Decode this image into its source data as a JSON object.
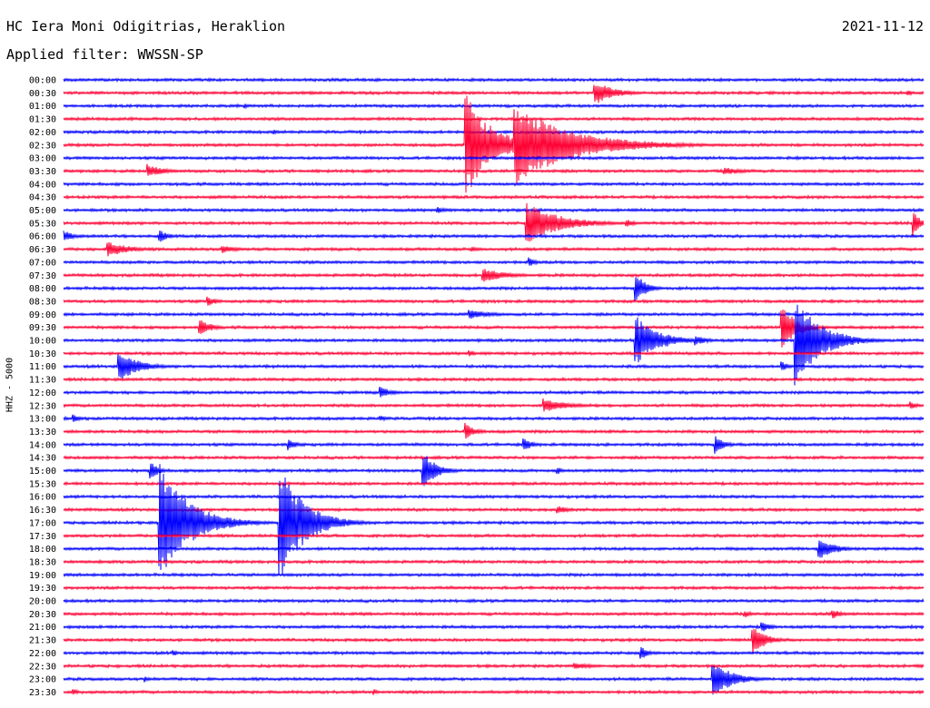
{
  "header": {
    "station": "HC Iera Moni Odigitrias, Heraklion",
    "filter": "Applied filter: WWSSN-SP",
    "date": "2021-11-12"
  },
  "chart_data": {
    "type": "line",
    "title": "HC Iera Moni Odigitrias, Heraklion",
    "subtitle": "Applied filter: WWSSN-SP",
    "ylabel": "HHZ - 5000",
    "date": "2021-11-12",
    "traces": [
      "00:00",
      "00:30",
      "01:00",
      "01:30",
      "02:00",
      "02:30",
      "03:00",
      "03:30",
      "04:00",
      "04:30",
      "05:00",
      "05:30",
      "06:00",
      "06:30",
      "07:00",
      "07:30",
      "08:00",
      "08:30",
      "09:00",
      "09:30",
      "10:00",
      "10:30",
      "11:00",
      "11:30",
      "12:00",
      "12:30",
      "13:00",
      "13:30",
      "14:00",
      "14:30",
      "15:00",
      "15:30",
      "16:00",
      "16:30",
      "17:00",
      "17:30",
      "18:00",
      "18:30",
      "19:00",
      "19:30",
      "20:00",
      "20:30",
      "21:00",
      "21:30",
      "22:00",
      "22:30",
      "23:00",
      "23:30"
    ],
    "trace_colors": [
      "#0000ff",
      "#ff0033"
    ],
    "trace_duration_minutes": 30,
    "events": [
      {
        "trace": 1,
        "minute": 18.5,
        "amp": 14,
        "dur": 1.2
      },
      {
        "trace": 1,
        "minute": 29.4,
        "amp": 4,
        "dur": 0.4
      },
      {
        "trace": 2,
        "minute": 6.3,
        "amp": 3,
        "dur": 0.4
      },
      {
        "trace": 4,
        "minute": 7.3,
        "amp": 3,
        "dur": 0.4
      },
      {
        "trace": 5,
        "minute": 14.0,
        "amp": 60,
        "dur": 1.6
      },
      {
        "trace": 5,
        "minute": 15.7,
        "amp": 45,
        "dur": 3.5
      },
      {
        "trace": 7,
        "minute": 2.9,
        "amp": 8,
        "dur": 1.0
      },
      {
        "trace": 7,
        "minute": 23.0,
        "amp": 5,
        "dur": 1.2
      },
      {
        "trace": 10,
        "minute": 13.0,
        "amp": 4,
        "dur": 0.6
      },
      {
        "trace": 11,
        "minute": 16.1,
        "amp": 25,
        "dur": 2.0
      },
      {
        "trace": 11,
        "minute": 19.6,
        "amp": 5,
        "dur": 0.6
      },
      {
        "trace": 11,
        "minute": 29.6,
        "amp": 18,
        "dur": 0.4
      },
      {
        "trace": 12,
        "minute": 0.0,
        "amp": 7,
        "dur": 0.6
      },
      {
        "trace": 12,
        "minute": 3.3,
        "amp": 8,
        "dur": 0.6
      },
      {
        "trace": 13,
        "minute": 1.5,
        "amp": 9,
        "dur": 1.4
      },
      {
        "trace": 13,
        "minute": 5.5,
        "amp": 5,
        "dur": 1.0
      },
      {
        "trace": 13,
        "minute": 14.2,
        "amp": 3,
        "dur": 0.8
      },
      {
        "trace": 14,
        "minute": 16.2,
        "amp": 6,
        "dur": 0.5
      },
      {
        "trace": 15,
        "minute": 14.6,
        "amp": 8,
        "dur": 1.5
      },
      {
        "trace": 16,
        "minute": 19.9,
        "amp": 22,
        "dur": 0.6
      },
      {
        "trace": 17,
        "minute": 5.0,
        "amp": 6,
        "dur": 0.6
      },
      {
        "trace": 18,
        "minute": 14.1,
        "amp": 6,
        "dur": 1.4
      },
      {
        "trace": 19,
        "minute": 4.7,
        "amp": 11,
        "dur": 0.7
      },
      {
        "trace": 19,
        "minute": 25.0,
        "amp": 25,
        "dur": 1.0
      },
      {
        "trace": 20,
        "minute": 19.9,
        "amp": 30,
        "dur": 1.4
      },
      {
        "trace": 20,
        "minute": 25.5,
        "amp": 50,
        "dur": 1.6
      },
      {
        "trace": 20,
        "minute": 22.0,
        "amp": 6,
        "dur": 0.8
      },
      {
        "trace": 21,
        "minute": 14.1,
        "amp": 5,
        "dur": 0.4
      },
      {
        "trace": 22,
        "minute": 1.9,
        "amp": 18,
        "dur": 1.2
      },
      {
        "trace": 22,
        "minute": 25.0,
        "amp": 8,
        "dur": 0.4
      },
      {
        "trace": 24,
        "minute": 11.0,
        "amp": 7,
        "dur": 0.8
      },
      {
        "trace": 25,
        "minute": 16.7,
        "amp": 8,
        "dur": 1.6
      },
      {
        "trace": 25,
        "minute": 29.5,
        "amp": 6,
        "dur": 0.4
      },
      {
        "trace": 26,
        "minute": 0.3,
        "amp": 5,
        "dur": 0.5
      },
      {
        "trace": 26,
        "minute": 11.0,
        "amp": 4,
        "dur": 0.5
      },
      {
        "trace": 27,
        "minute": 14.0,
        "amp": 10,
        "dur": 0.6
      },
      {
        "trace": 28,
        "minute": 7.8,
        "amp": 8,
        "dur": 0.5
      },
      {
        "trace": 28,
        "minute": 16.0,
        "amp": 10,
        "dur": 0.5
      },
      {
        "trace": 28,
        "minute": 22.7,
        "amp": 11,
        "dur": 0.6
      },
      {
        "trace": 30,
        "minute": 3.0,
        "amp": 12,
        "dur": 0.5
      },
      {
        "trace": 30,
        "minute": 12.5,
        "amp": 24,
        "dur": 0.8
      },
      {
        "trace": 30,
        "minute": 17.2,
        "amp": 5,
        "dur": 0.4
      },
      {
        "trace": 33,
        "minute": 17.2,
        "amp": 5,
        "dur": 0.8
      },
      {
        "trace": 34,
        "minute": 3.3,
        "amp": 70,
        "dur": 1.8
      },
      {
        "trace": 34,
        "minute": 7.5,
        "amp": 70,
        "dur": 1.5
      },
      {
        "trace": 36,
        "minute": 26.3,
        "amp": 14,
        "dur": 1.0
      },
      {
        "trace": 41,
        "minute": 23.7,
        "amp": 5,
        "dur": 0.5
      },
      {
        "trace": 41,
        "minute": 26.8,
        "amp": 6,
        "dur": 0.6
      },
      {
        "trace": 42,
        "minute": 24.3,
        "amp": 7,
        "dur": 0.6
      },
      {
        "trace": 43,
        "minute": 24.0,
        "amp": 18,
        "dur": 0.8
      },
      {
        "trace": 44,
        "minute": 3.8,
        "amp": 5,
        "dur": 0.3
      },
      {
        "trace": 44,
        "minute": 20.1,
        "amp": 9,
        "dur": 0.5
      },
      {
        "trace": 45,
        "minute": 17.8,
        "amp": 4,
        "dur": 1.4
      },
      {
        "trace": 46,
        "minute": 22.6,
        "amp": 22,
        "dur": 1.2
      },
      {
        "trace": 46,
        "minute": 2.8,
        "amp": 4,
        "dur": 0.3
      },
      {
        "trace": 47,
        "minute": 0.3,
        "amp": 5,
        "dur": 0.3
      },
      {
        "trace": 47,
        "minute": 10.8,
        "amp": 4,
        "dur": 0.3
      }
    ]
  }
}
